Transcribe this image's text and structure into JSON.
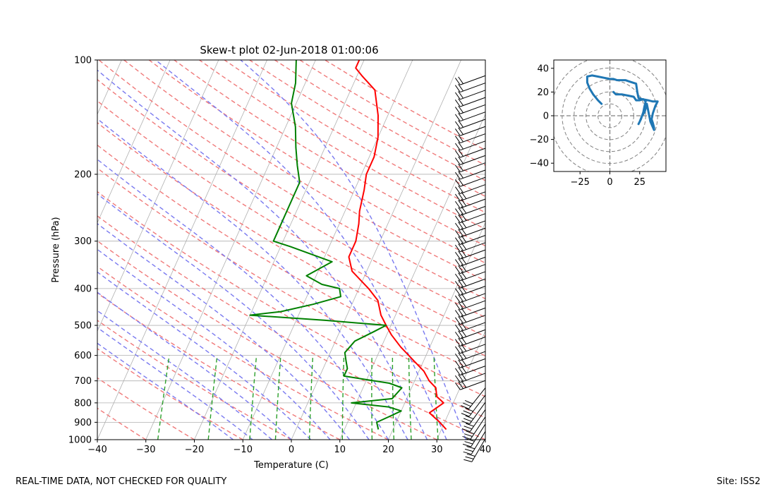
{
  "title": "Skew-t plot 02-Jun-2018 01:00:06",
  "footer": {
    "left": "REAL-TIME DATA, NOT CHECKED FOR QUALITY",
    "right": "Site: ISS2"
  },
  "chart_data": [
    {
      "type": "line",
      "name": "skew-t",
      "title": "Skew-t plot 02-Jun-2018 01:00:06",
      "xlabel": "Temperature (C)",
      "ylabel": "Pressure (hPa)",
      "xlim": [
        -40,
        40
      ],
      "ylim": [
        1000,
        100
      ],
      "yscale": "log",
      "x_ticks": [
        -40,
        -30,
        -20,
        -10,
        0,
        10,
        20,
        30,
        40
      ],
      "y_ticks": [
        100,
        200,
        300,
        400,
        500,
        600,
        700,
        800,
        900,
        1000
      ],
      "grid": true,
      "series": [
        {
          "color": "#ff0000",
          "points": [
            [
              31,
              940
            ],
            [
              29,
              900
            ],
            [
              26,
              850
            ],
            [
              28,
              800
            ],
            [
              26,
              770
            ],
            [
              25,
              730
            ],
            [
              23,
              700
            ],
            [
              21,
              660
            ],
            [
              18,
              620
            ],
            [
              14,
              570
            ],
            [
              11,
              530
            ],
            [
              9,
              500
            ],
            [
              7,
              470
            ],
            [
              5,
              430
            ],
            [
              2,
              400
            ],
            [
              -3,
              360
            ],
            [
              -5,
              330
            ],
            [
              -5,
              300
            ],
            [
              -6,
              270
            ],
            [
              -7,
              250
            ],
            [
              -8,
              220
            ],
            [
              -9,
              200
            ],
            [
              -9,
              180
            ],
            [
              -10,
              160
            ],
            [
              -12,
              140
            ],
            [
              -15,
              120
            ],
            [
              -19,
              110
            ],
            [
              -21,
              105
            ],
            [
              -21,
              100
            ]
          ]
        },
        {
          "color": "#008000",
          "points": [
            [
              17,
              940
            ],
            [
              16,
              900
            ],
            [
              18,
              870
            ],
            [
              20,
              840
            ],
            [
              17,
              820
            ],
            [
              9,
              800
            ],
            [
              17,
              780
            ],
            [
              18,
              730
            ],
            [
              15,
              710
            ],
            [
              5,
              680
            ],
            [
              5,
              650
            ],
            [
              4,
              620
            ],
            [
              3,
              590
            ],
            [
              4,
              550
            ],
            [
              7,
              520
            ],
            [
              9,
              500
            ],
            [
              -4,
              485
            ],
            [
              -20,
              470
            ],
            [
              -14,
              460
            ],
            [
              -8,
              440
            ],
            [
              -3,
              420
            ],
            [
              -4,
              400
            ],
            [
              -8,
              390
            ],
            [
              -12,
              370
            ],
            [
              -8,
              340
            ],
            [
              -18,
              310
            ],
            [
              -22,
              300
            ],
            [
              -22,
              260
            ],
            [
              -22,
              230
            ],
            [
              -22,
              210
            ],
            [
              -24,
              190
            ],
            [
              -26,
              170
            ],
            [
              -28,
              150
            ],
            [
              -31,
              130
            ],
            [
              -32,
              115
            ],
            [
              -34,
              100
            ]
          ]
        }
      ],
      "reference_lines": {
        "dry_adiabats": "red dashed",
        "moist_adiabats": "blue dashed",
        "mixing_ratio": "green dashed",
        "isotherms": "gray solid"
      },
      "wind_barbs": "right edge, 100-1000 hPa"
    },
    {
      "type": "line",
      "name": "hodograph",
      "xlim": [
        -47,
        47
      ],
      "ylim": [
        -47,
        47
      ],
      "x_ticks": [
        -25,
        0,
        25
      ],
      "y_ticks": [
        -40,
        -20,
        0,
        20,
        40
      ],
      "rings": [
        10,
        20,
        30,
        40,
        50
      ],
      "series": [
        {
          "color": "#1f77b4",
          "points": [
            [
              -7,
              10
            ],
            [
              -10,
              13
            ],
            [
              -14,
              18
            ],
            [
              -17,
              23
            ],
            [
              -19,
              28
            ],
            [
              -19,
              33
            ],
            [
              -15,
              34
            ],
            [
              -10,
              33
            ],
            [
              -5,
              32
            ],
            [
              0,
              31
            ],
            [
              3,
              31
            ],
            [
              6,
              30
            ],
            [
              10,
              30
            ],
            [
              13,
              30
            ],
            [
              16,
              29
            ],
            [
              19,
              28
            ],
            [
              22,
              27
            ],
            [
              23,
              20
            ],
            [
              24,
              15
            ],
            [
              27,
              14
            ],
            [
              32,
              13
            ],
            [
              36,
              12
            ],
            [
              40,
              12
            ],
            [
              38,
              8
            ],
            [
              37,
              5
            ],
            [
              36,
              2
            ],
            [
              35,
              -3
            ],
            [
              36,
              -6
            ],
            [
              37,
              -10
            ],
            [
              37,
              -12
            ],
            [
              34,
              -5
            ],
            [
              33,
              0
            ],
            [
              32,
              5
            ],
            [
              31,
              10
            ],
            [
              30,
              6
            ],
            [
              29,
              3
            ],
            [
              27,
              0
            ],
            [
              25,
              -5
            ],
            [
              24,
              -7
            ],
            [
              26,
              -3
            ],
            [
              28,
              3
            ],
            [
              29,
              8
            ],
            [
              30,
              12
            ],
            [
              28,
              14
            ],
            [
              25,
              13
            ],
            [
              22,
              13
            ],
            [
              20,
              16
            ],
            [
              15,
              17
            ],
            [
              10,
              18
            ],
            [
              5,
              18
            ],
            [
              3,
              20
            ]
          ]
        }
      ]
    }
  ]
}
